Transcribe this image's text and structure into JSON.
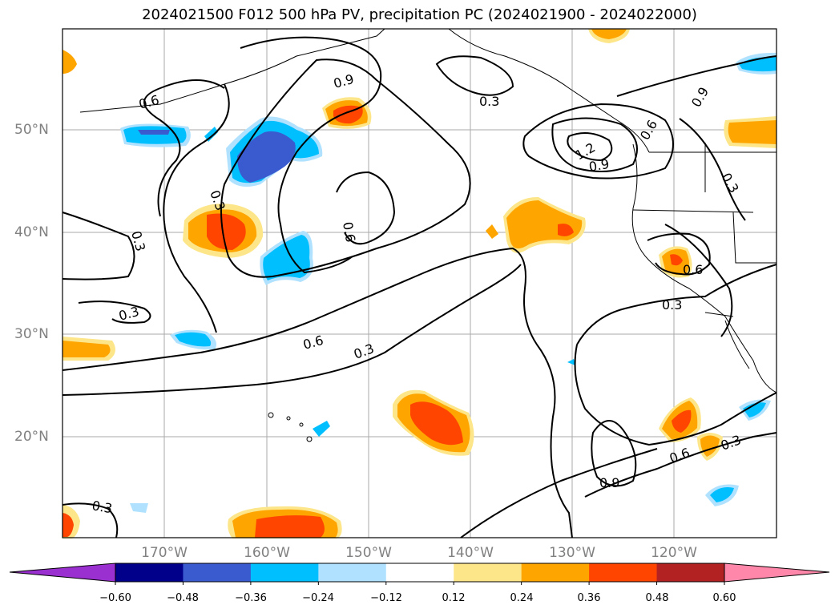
{
  "title": "2024021500 F012 500 hPa PV, precipitation PC (2024021900 - 2024022000)",
  "lat_labels": [
    "50°N",
    "40°N",
    "30°N",
    "20°N"
  ],
  "lon_labels": [
    "170°W",
    "160°W",
    "150°W",
    "140°W",
    "130°W",
    "120°W"
  ],
  "contour_labels": [
    "0.3",
    "0.6",
    "0.9",
    "1.2"
  ],
  "colorbar": {
    "ticks": [
      "−0.60",
      "−0.48",
      "−0.36",
      "−0.24",
      "−0.12",
      "0.12",
      "0.24",
      "0.36",
      "0.48",
      "0.60"
    ],
    "colors": [
      "#9b30d0",
      "#00008b",
      "#3a5bd0",
      "#00bfff",
      "#b0e2ff",
      "#ffffff",
      "#fde68a",
      "#ffa500",
      "#ff4500",
      "#b22222",
      "#ff88aa"
    ]
  },
  "colors": {
    "pos_light": "#fde68a",
    "pos_mid": "#ffa500",
    "pos_strong": "#ff4500",
    "neg_light": "#b0e2ff",
    "neg_mid": "#00bfff",
    "neg_strong": "#3a5bd0",
    "contour": "#000000",
    "grid": "#aaaaaa"
  }
}
